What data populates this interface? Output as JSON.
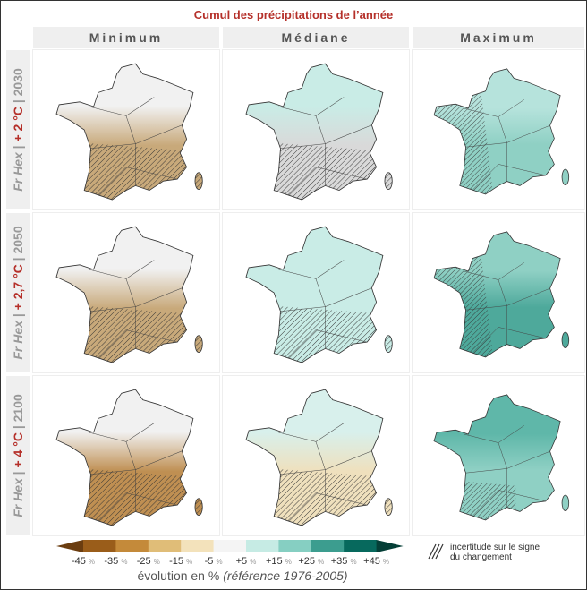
{
  "title": "Cumul des précipitations de l’année",
  "columns": [
    "Minimum",
    "Médiane",
    "Maximum"
  ],
  "rows": [
    {
      "model": "Fr Hex",
      "sep": " | ",
      "warming": "+ 2 °C",
      "year": " | 2030"
    },
    {
      "model": "Fr Hex",
      "sep": " | ",
      "warming": "+ 2,7 °C",
      "year": " | 2050"
    },
    {
      "model": "Fr Hex",
      "sep": " | ",
      "warming": "+ 4 °C",
      "year": " | 2100"
    }
  ],
  "panels": [
    {
      "north": "#f1f1f1",
      "south": "#c8a97a",
      "hatch": "south"
    },
    {
      "north": "#c9ece6",
      "south": "#d9d9d9",
      "hatch": "south"
    },
    {
      "north": "#b6e3dc",
      "south": "#8fd0c4",
      "hatch": "west"
    },
    {
      "north": "#f1f1f1",
      "south": "#c8a97a",
      "hatch": "south"
    },
    {
      "north": "#c9ece6",
      "south": "#c9ece6",
      "hatch": "south"
    },
    {
      "north": "#8fd0c4",
      "south": "#4ea99b",
      "hatch": "west"
    },
    {
      "north": "#f1f1f1",
      "south": "#bf8f52",
      "hatch": "south"
    },
    {
      "north": "#d8f0ec",
      "south": "#efe0bd",
      "hatch": "south"
    },
    {
      "north": "#5fb7a9",
      "south": "#8fd0c4",
      "hatch": "southwest"
    }
  ],
  "legend": {
    "colors": [
      "#6b3d10",
      "#9a5d1a",
      "#c48a3a",
      "#e0bd78",
      "#f3e2bb",
      "#f4f4f4",
      "#c6ebe4",
      "#86cfc2",
      "#3c9d8f",
      "#07695d",
      "#053f37"
    ],
    "ticks": [
      "-45",
      "-35",
      "-25",
      "-15",
      "-5",
      "+5",
      "+15",
      "+25",
      "+35",
      "+45"
    ],
    "unit": "%",
    "label": "évolution en % ",
    "label_ref": "(référence 1976-2005)",
    "uncertainty": "incertitude sur le signe du changement"
  }
}
